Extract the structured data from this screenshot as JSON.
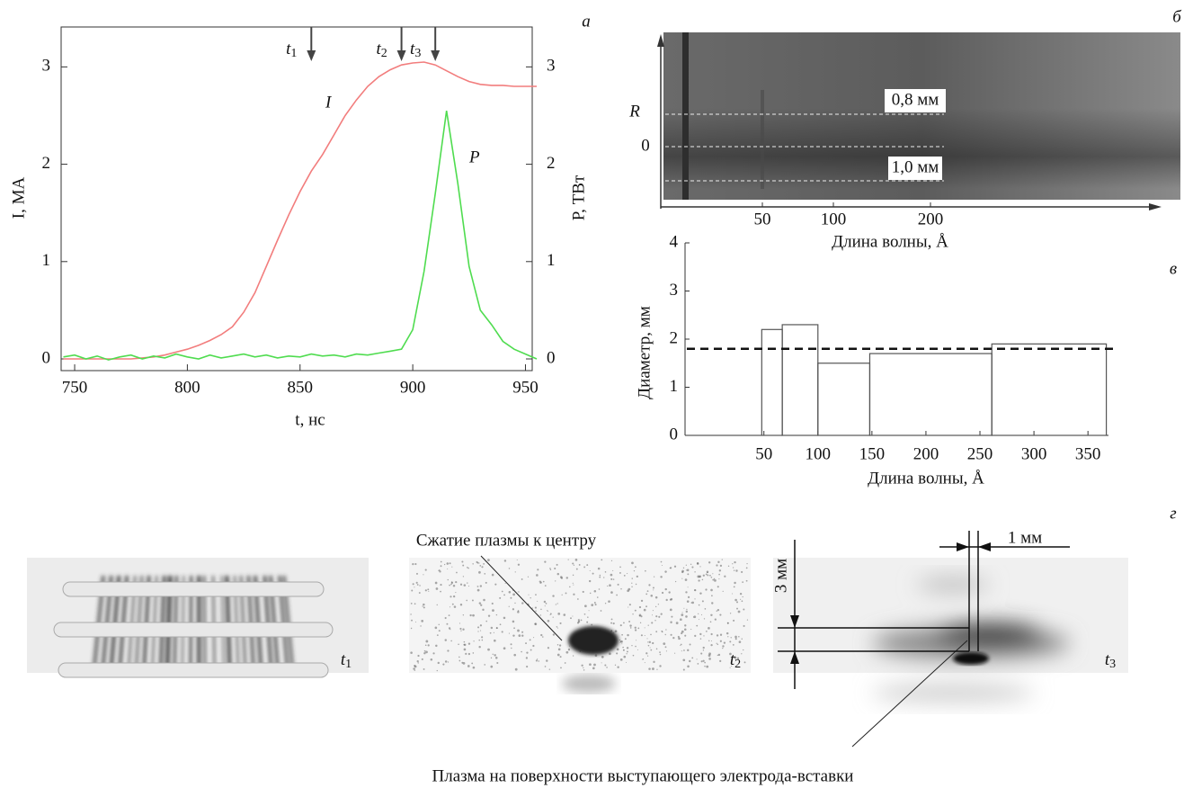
{
  "chart_data": [
    {
      "type": "line",
      "panel": "а",
      "xlabel": "t, нс",
      "ylabel": "I, МА",
      "y2label": "P, ТВт",
      "xlim": [
        744,
        953
      ],
      "xticks": [
        750,
        800,
        850,
        900,
        950
      ],
      "ylim": [
        -0.12,
        3.41
      ],
      "yticks": [
        0,
        1,
        2,
        3
      ],
      "y2lim": [
        -0.12,
        3.41
      ],
      "y2ticks": [
        0,
        1,
        2,
        3
      ],
      "x": [
        745,
        750,
        755,
        760,
        765,
        770,
        775,
        780,
        785,
        790,
        795,
        800,
        805,
        810,
        815,
        820,
        825,
        830,
        835,
        840,
        845,
        850,
        855,
        860,
        865,
        870,
        875,
        880,
        885,
        890,
        895,
        900,
        905,
        910,
        915,
        920,
        925,
        930,
        935,
        940,
        945,
        950,
        955
      ],
      "series": [
        {
          "name": "I",
          "color": "#f27d7d",
          "values": [
            0,
            0,
            0,
            0,
            0,
            0,
            0,
            0.01,
            0.02,
            0.04,
            0.07,
            0.1,
            0.14,
            0.19,
            0.25,
            0.33,
            0.48,
            0.68,
            0.95,
            1.22,
            1.48,
            1.72,
            1.93,
            2.1,
            2.3,
            2.5,
            2.66,
            2.8,
            2.9,
            2.97,
            3.02,
            3.04,
            3.05,
            3.02,
            2.96,
            2.9,
            2.85,
            2.82,
            2.81,
            2.81,
            2.8,
            2.8,
            2.8
          ]
        },
        {
          "name": "P",
          "color": "#4fdc4f",
          "axis": "y2",
          "values": [
            0.02,
            0.04,
            0,
            0.03,
            -0.01,
            0.02,
            0.04,
            0,
            0.03,
            0.01,
            0.05,
            0.02,
            0,
            0.04,
            0.01,
            0.03,
            0.05,
            0.02,
            0.04,
            0.01,
            0.03,
            0.02,
            0.05,
            0.03,
            0.04,
            0.02,
            0.05,
            0.04,
            0.06,
            0.08,
            0.1,
            0.3,
            0.9,
            1.7,
            2.55,
            1.8,
            0.95,
            0.5,
            0.35,
            0.18,
            0.1,
            0.05,
            0
          ]
        }
      ],
      "annotations": [
        {
          "x": 855,
          "var": "t",
          "sub": "1"
        },
        {
          "x": 895,
          "var": "t",
          "sub": "2"
        },
        {
          "x": 910,
          "var": "t",
          "sub": "3"
        }
      ]
    },
    {
      "type": "histogram",
      "panel": "в",
      "xlabel": "Длина волны, Å",
      "ylabel": "Диаметр, мм",
      "xlim": [
        -23,
        369
      ],
      "xticks": [
        50,
        100,
        150,
        200,
        250,
        300,
        350
      ],
      "ylim": [
        0,
        4
      ],
      "yticks": [
        0,
        1,
        2,
        3,
        4
      ],
      "bins": [
        48,
        67,
        100,
        148,
        261,
        367
      ],
      "values": [
        2.2,
        2.3,
        1.5,
        1.7,
        1.9
      ],
      "color": "#555555",
      "reference_line": 1.8
    }
  ],
  "spectrogram": {
    "panel": "б",
    "ylabel": "R",
    "zero": "0",
    "xticks": [
      "50",
      "100",
      "200"
    ],
    "xlabel": "Длина волны, Å",
    "line_labels": [
      "0,8 мм",
      "1,0 мм"
    ]
  },
  "images": {
    "panel": "г",
    "frames": [
      {
        "var": "t",
        "sub": "1"
      },
      {
        "var": "t",
        "sub": "2"
      },
      {
        "var": "t",
        "sub": "3"
      }
    ],
    "annotation_top": "Сжатие плазмы к центру",
    "annotation_bottom": "Плазма на поверхности выступающего электрода-вставки",
    "scale_vertical": "3 мм",
    "scale_horizontal": "1 мм"
  }
}
